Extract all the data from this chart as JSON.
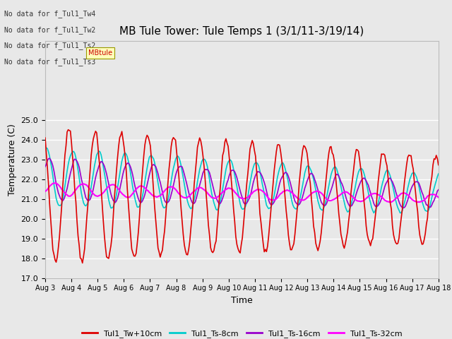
{
  "title": "MB Tule Tower: Tule Temps 1 (3/1/11-3/19/14)",
  "xlabel": "Time",
  "ylabel": "Temperature (C)",
  "ylim": [
    17.0,
    29.0
  ],
  "yticks": [
    17.0,
    18.0,
    19.0,
    20.0,
    21.0,
    22.0,
    23.0,
    24.0,
    25.0
  ],
  "xtick_labels": [
    "Aug 3",
    "Aug 4",
    "Aug 5",
    "Aug 6",
    "Aug 7",
    "Aug 8",
    "Aug 9",
    "Aug 10",
    "Aug 11",
    "Aug 12",
    "Aug 13",
    "Aug 14",
    "Aug 15",
    "Aug 16",
    "Aug 17",
    "Aug 18"
  ],
  "series": {
    "Tul1_Tw+10cm": {
      "color": "#dd0000",
      "linewidth": 1.2
    },
    "Tul1_Ts-8cm": {
      "color": "#00cccc",
      "linewidth": 1.2
    },
    "Tul1_Ts-16cm": {
      "color": "#9900cc",
      "linewidth": 1.2
    },
    "Tul1_Ts-32cm": {
      "color": "#ff00ff",
      "linewidth": 1.5
    }
  },
  "legend_notes": [
    "No data for f_Tul1_Tw4",
    "No data for f_Tul1_Tw2",
    "No data for f_Tul1_Ts2",
    "No data for f_Tul1_Ts3"
  ],
  "bg_color": "#e8e8e8",
  "plot_bg_color": "#e8e8e8",
  "grid_color": "#ffffff",
  "title_fontsize": 11,
  "axis_fontsize": 9,
  "tick_fontsize": 8
}
